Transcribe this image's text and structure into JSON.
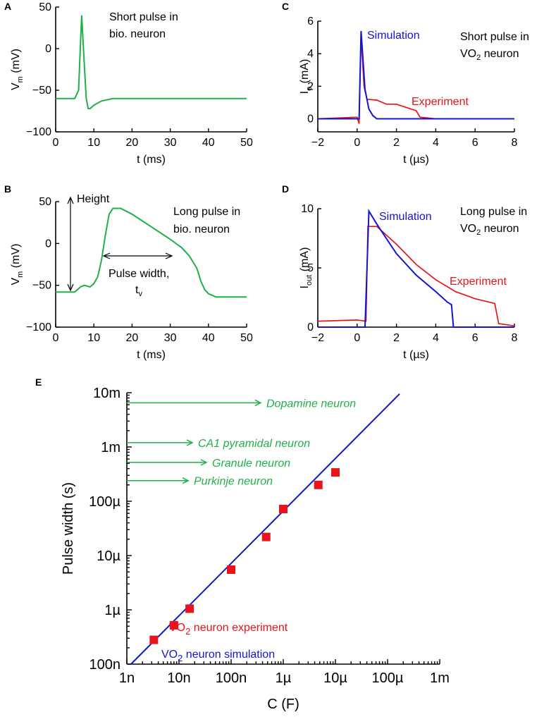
{
  "colors": {
    "bio": "#1fb04a",
    "sim": "#1414d2",
    "exp": "#e8141c",
    "neurons": "#1fb04a"
  },
  "chart_data": [
    {
      "panel": "A",
      "type": "line",
      "annotation": [
        "Short pulse in",
        "bio. neuron"
      ],
      "xlabel": "t (ms)",
      "ylabel_main": "V",
      "ylabel_sub": "m",
      "ylabel_unit": "(mV)",
      "xlim": [
        0,
        50
      ],
      "ylim": [
        -100,
        50
      ],
      "xticks": [
        0,
        10,
        20,
        30,
        40,
        50
      ],
      "yticks": [
        -100,
        -50,
        0,
        50
      ],
      "series": [
        {
          "name": "bio. neuron",
          "color_key": "bio",
          "points": [
            [
              0,
              -60
            ],
            [
              5,
              -60
            ],
            [
              6,
              -50
            ],
            [
              6.8,
              40
            ],
            [
              7.5,
              -20
            ],
            [
              8,
              -60
            ],
            [
              8.5,
              -72
            ],
            [
              9,
              -72
            ],
            [
              10,
              -68
            ],
            [
              12,
              -63
            ],
            [
              15,
              -60
            ],
            [
              20,
              -60
            ],
            [
              30,
              -60
            ],
            [
              40,
              -60
            ],
            [
              50,
              -60
            ]
          ]
        }
      ]
    },
    {
      "panel": "B",
      "type": "line",
      "annotation": [
        "Long pulse in",
        "bio. neuron"
      ],
      "height_label": "Height",
      "width_label": [
        "Pulse width,",
        "t",
        "v"
      ],
      "xlabel": "t (ms)",
      "ylabel_main": "V",
      "ylabel_sub": "m",
      "ylabel_unit": "(mV)",
      "xlim": [
        0,
        50
      ],
      "ylim": [
        -100,
        50
      ],
      "xticks": [
        0,
        10,
        20,
        30,
        40,
        50
      ],
      "yticks": [
        -100,
        -50,
        0,
        50
      ],
      "series": [
        {
          "name": "bio. neuron",
          "color_key": "bio",
          "points": [
            [
              0,
              -58
            ],
            [
              5,
              -58
            ],
            [
              6.5,
              -52
            ],
            [
              7.5,
              -50
            ],
            [
              9,
              -52
            ],
            [
              10,
              -48
            ],
            [
              11,
              -40
            ],
            [
              12,
              -20
            ],
            [
              13,
              10
            ],
            [
              14,
              35
            ],
            [
              15,
              42
            ],
            [
              17,
              42
            ],
            [
              20,
              35
            ],
            [
              25,
              20
            ],
            [
              30,
              5
            ],
            [
              33,
              -5
            ],
            [
              35,
              -15
            ],
            [
              37,
              -30
            ],
            [
              38,
              -45
            ],
            [
              39,
              -55
            ],
            [
              40,
              -60
            ],
            [
              42,
              -64
            ],
            [
              45,
              -64
            ],
            [
              50,
              -64
            ]
          ]
        }
      ]
    },
    {
      "panel": "C",
      "type": "line",
      "annotation": [
        "Short pulse in",
        "VO",
        "2",
        " neuron"
      ],
      "xlabel": "t (µs)",
      "ylabel_main": "I",
      "ylabel_sub": "o",
      "ylabel_unit": "(mA)",
      "xlim": [
        -2,
        8
      ],
      "ylim": [
        -0.8,
        6
      ],
      "xticks": [
        -2,
        0,
        2,
        4,
        6,
        8
      ],
      "yticks": [
        0,
        2,
        4,
        6
      ],
      "series": [
        {
          "name": "Experiment",
          "color_key": "exp",
          "points": [
            [
              -2,
              0
            ],
            [
              0,
              0.1
            ],
            [
              0.1,
              -0.3
            ],
            [
              0.2,
              5.1
            ],
            [
              0.35,
              2
            ],
            [
              0.5,
              1.2
            ],
            [
              1,
              1.15
            ],
            [
              1.5,
              0.9
            ],
            [
              2,
              0.9
            ],
            [
              2.5,
              0.7
            ],
            [
              3,
              0.5
            ],
            [
              3.2,
              0.1
            ],
            [
              4,
              0
            ],
            [
              5,
              0
            ],
            [
              6,
              0
            ],
            [
              7,
              0
            ],
            [
              8,
              0
            ]
          ]
        },
        {
          "name": "Simulation",
          "color_key": "sim",
          "points": [
            [
              -2,
              0
            ],
            [
              0.1,
              0
            ],
            [
              0.2,
              5.4
            ],
            [
              0.4,
              1.8
            ],
            [
              0.6,
              0.6
            ],
            [
              0.8,
              0.2
            ],
            [
              1,
              0
            ],
            [
              8,
              0
            ]
          ]
        }
      ],
      "labels": {
        "sim": "Simulation",
        "exp": "Experiment"
      }
    },
    {
      "panel": "D",
      "type": "line",
      "annotation": [
        "Long pulse in",
        "VO",
        "2",
        " neuron"
      ],
      "xlabel": "t (µs)",
      "ylabel_main": "I",
      "ylabel_sub": "out",
      "ylabel_unit": "(mA)",
      "xlim": [
        -2,
        8
      ],
      "ylim": [
        0,
        10
      ],
      "xticks": [
        -2,
        0,
        2,
        4,
        6,
        8
      ],
      "yticks": [
        0,
        5,
        10
      ],
      "series": [
        {
          "name": "Experiment",
          "color_key": "exp",
          "points": [
            [
              -2,
              0.5
            ],
            [
              0,
              0.6
            ],
            [
              0.45,
              0.5
            ],
            [
              0.55,
              8.5
            ],
            [
              1,
              8.5
            ],
            [
              2,
              7
            ],
            [
              3,
              5.3
            ],
            [
              4,
              4
            ],
            [
              5,
              3
            ],
            [
              6,
              2.4
            ],
            [
              7,
              2
            ],
            [
              7.2,
              0.3
            ],
            [
              8,
              0.1
            ]
          ]
        },
        {
          "name": "Simulation",
          "color_key": "sim",
          "points": [
            [
              -2,
              0
            ],
            [
              0.4,
              0
            ],
            [
              0.6,
              9.8
            ],
            [
              1,
              8.7
            ],
            [
              2,
              6.2
            ],
            [
              3,
              4.4
            ],
            [
              4,
              3
            ],
            [
              4.6,
              2.1
            ],
            [
              4.8,
              1.9
            ],
            [
              4.9,
              0
            ],
            [
              8,
              0
            ]
          ]
        }
      ],
      "labels": {
        "sim": "Simulation",
        "exp": "Experiment"
      }
    },
    {
      "panel": "E",
      "type": "scatter",
      "xscale": "log",
      "yscale": "log",
      "xlabel": "C (F)",
      "ylabel": "Pulse width (s)",
      "xlim": [
        1e-09,
        0.001
      ],
      "ylim": [
        1e-07,
        0.01
      ],
      "xticks": [
        1e-09,
        1e-08,
        1e-07,
        1e-06,
        1e-05,
        0.0001,
        0.001
      ],
      "xtick_labels": [
        "1n",
        "10n",
        "100n",
        "1µ",
        "10µ",
        "100µ",
        "1m"
      ],
      "yticks": [
        1e-07,
        1e-06,
        1e-05,
        0.0001,
        0.001,
        0.01
      ],
      "ytick_labels": [
        "100n",
        "1µ",
        "10µ",
        "100µ",
        "1m",
        "10m"
      ],
      "experiment": {
        "label_main": "VO",
        "label_sub": "2",
        "label_rest": " neuron experiment",
        "points": [
          [
            3.3e-09,
            2.8e-07
          ],
          [
            8e-09,
            5.2e-07
          ],
          [
            1.6e-08,
            1.05e-06
          ],
          [
            1e-07,
            5.5e-06
          ],
          [
            4.7e-07,
            2.2e-05
          ],
          [
            1e-06,
            7.2e-05
          ],
          [
            4.7e-06,
            0.0002
          ],
          [
            1e-05,
            0.00034
          ]
        ]
      },
      "simulation": {
        "label_main": "VO",
        "label_sub": "2",
        "label_rest": " neuron simulation",
        "points": [
          [
            1.2e-09,
            1e-07
          ],
          [
            0.00017,
            0.0095
          ]
        ]
      },
      "neurons": [
        {
          "name": "Dopamine neuron",
          "value": 0.0065
        },
        {
          "name": "CA1 pyramidal neuron",
          "value": 0.0012
        },
        {
          "name": "Granule neuron",
          "value": 0.00052
        },
        {
          "name": "Purkinje neuron",
          "value": 0.00024
        }
      ]
    }
  ]
}
